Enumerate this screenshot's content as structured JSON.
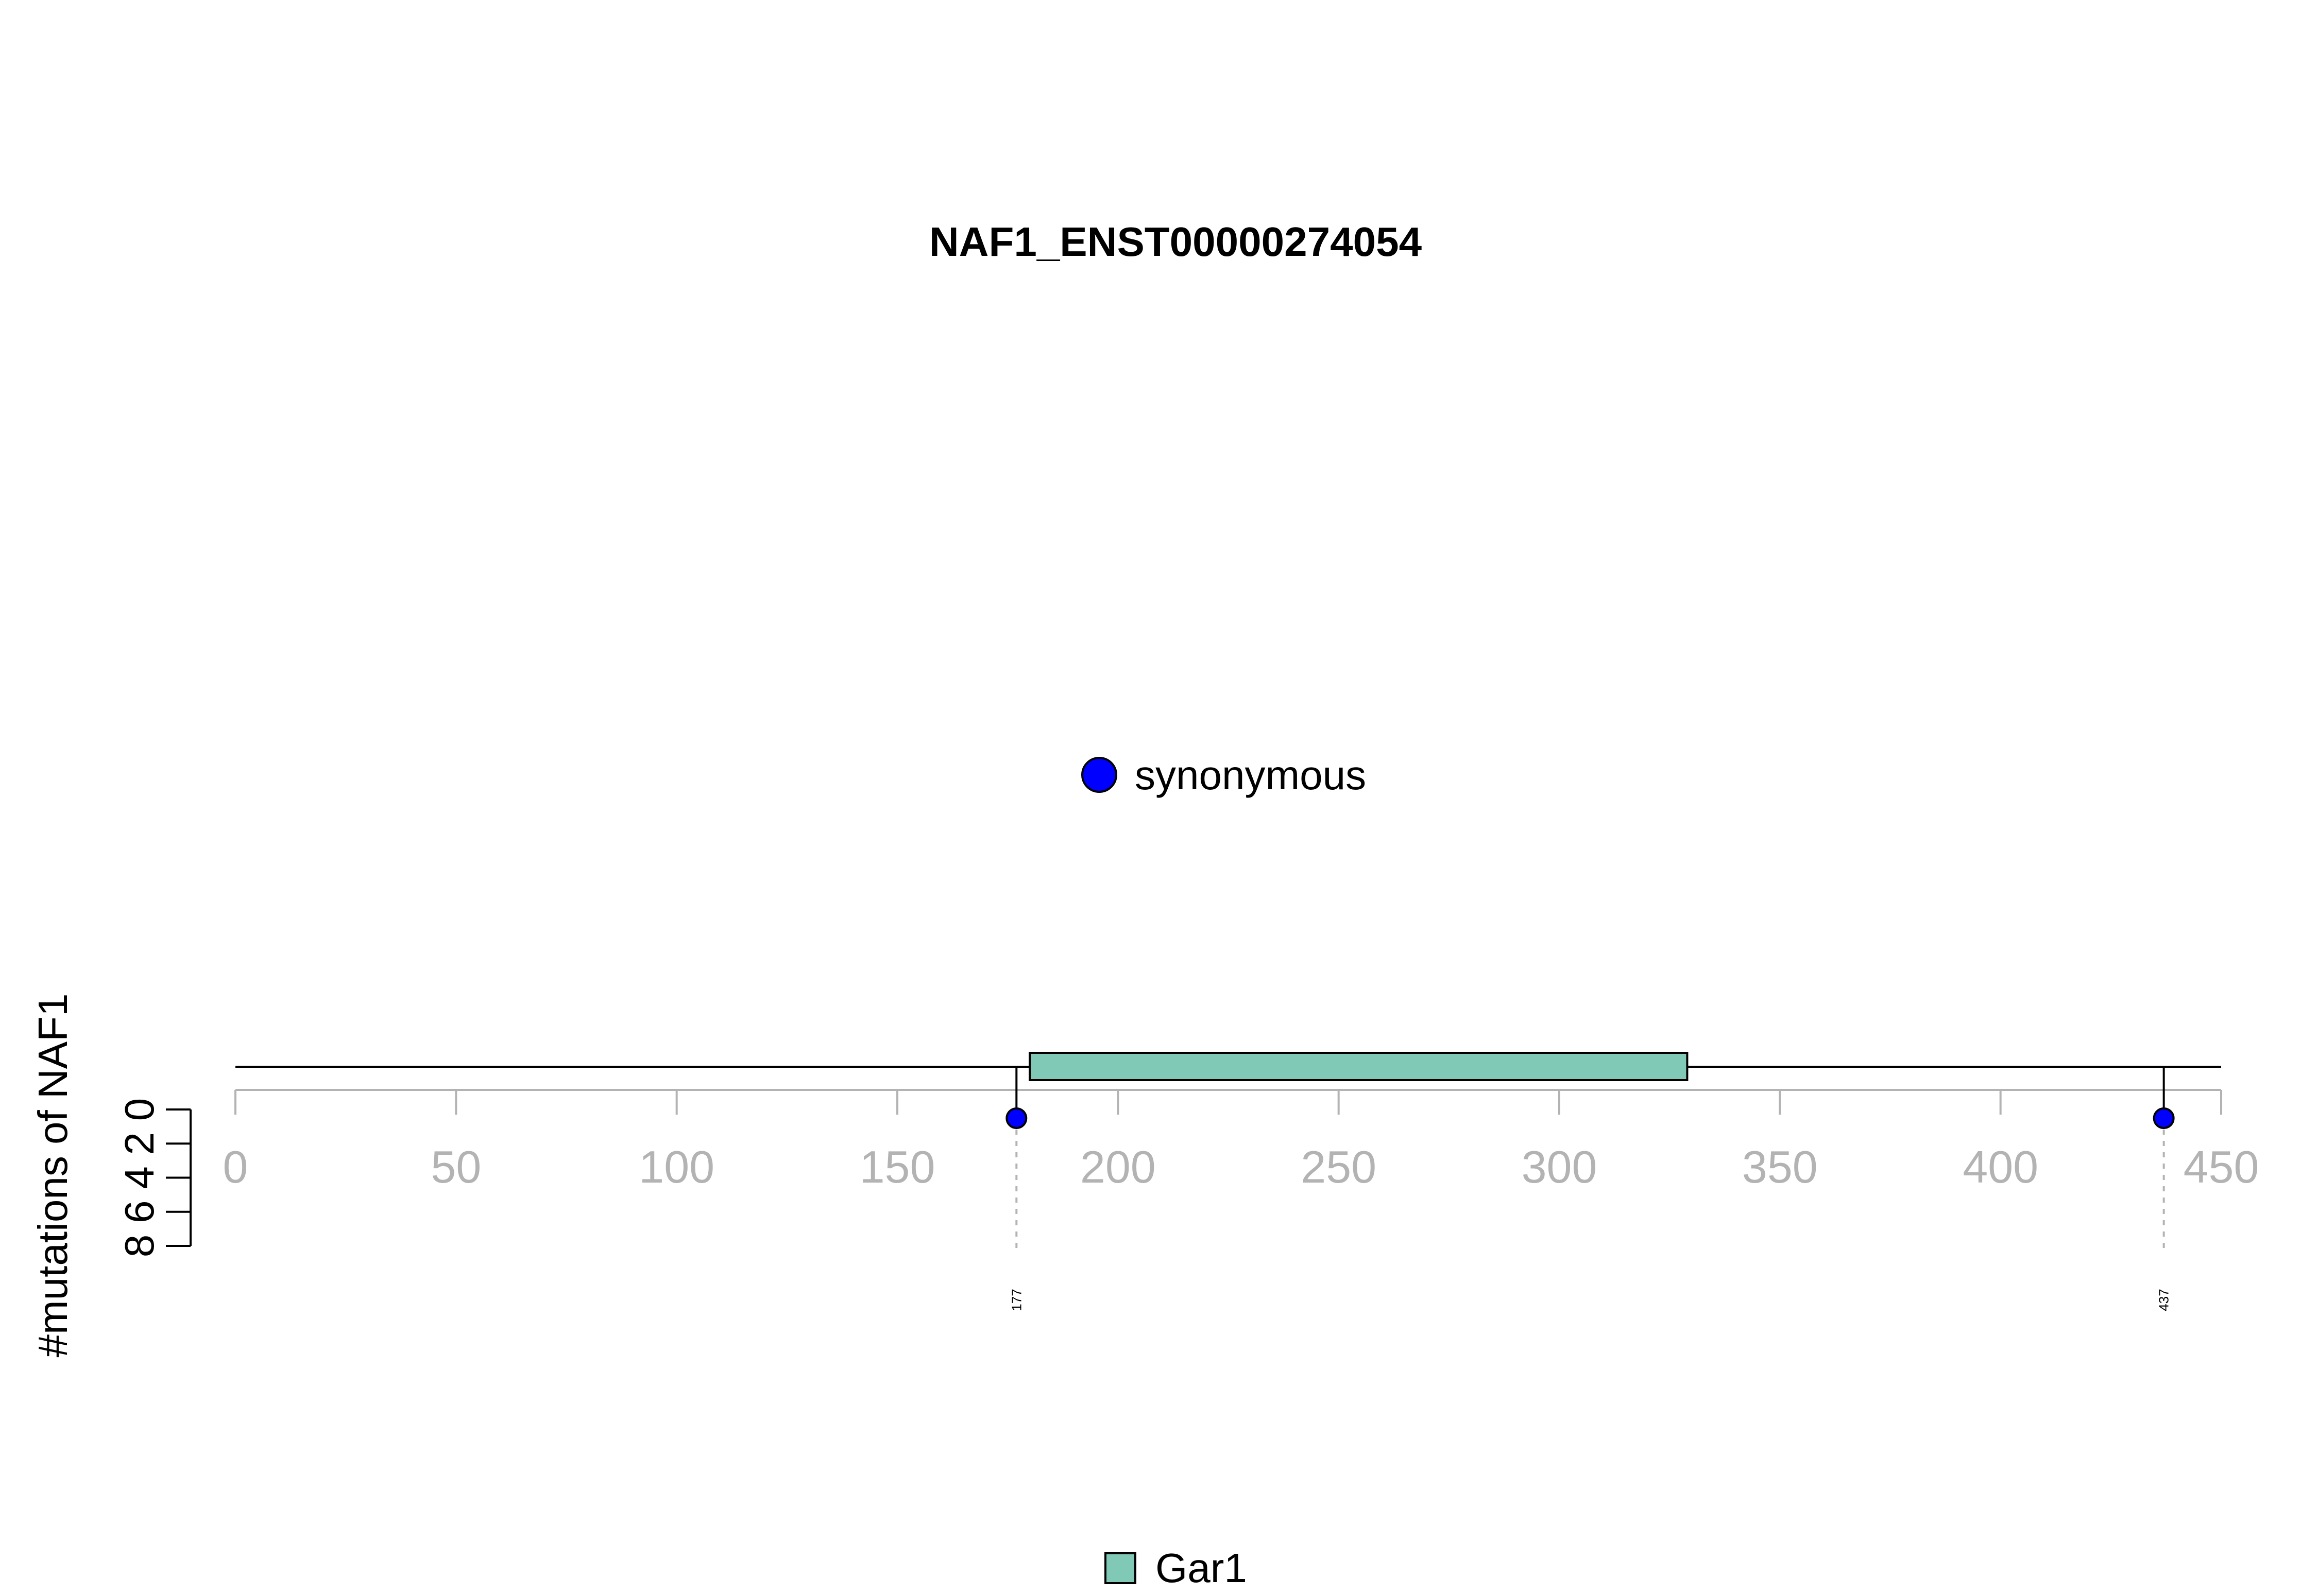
{
  "chart_data": {
    "type": "lollipop",
    "title": "NAF1_ENST00000274054",
    "ylabel": "#mutations of NAF1",
    "xlim": [
      0,
      450
    ],
    "x_ticks": [
      0,
      50,
      100,
      150,
      200,
      250,
      300,
      350,
      400,
      450
    ],
    "y_ticks": [
      0,
      2,
      4,
      6,
      8
    ],
    "ylim": [
      0,
      8
    ],
    "protein_length": 450,
    "domains": [
      {
        "name": "Gar1",
        "start": 180,
        "end": 329,
        "color": "#7fc9b6"
      }
    ],
    "mutations": [
      {
        "position": 177,
        "count": 1,
        "type": "synonymous",
        "label": "177"
      },
      {
        "position": 437,
        "count": 1,
        "type": "synonymous",
        "label": "437"
      }
    ],
    "mutation_legend": [
      {
        "name": "synonymous",
        "color": "#0000ff"
      }
    ],
    "domain_legend": [
      {
        "name": "Gar1",
        "color": "#7fc9b6"
      }
    ]
  }
}
